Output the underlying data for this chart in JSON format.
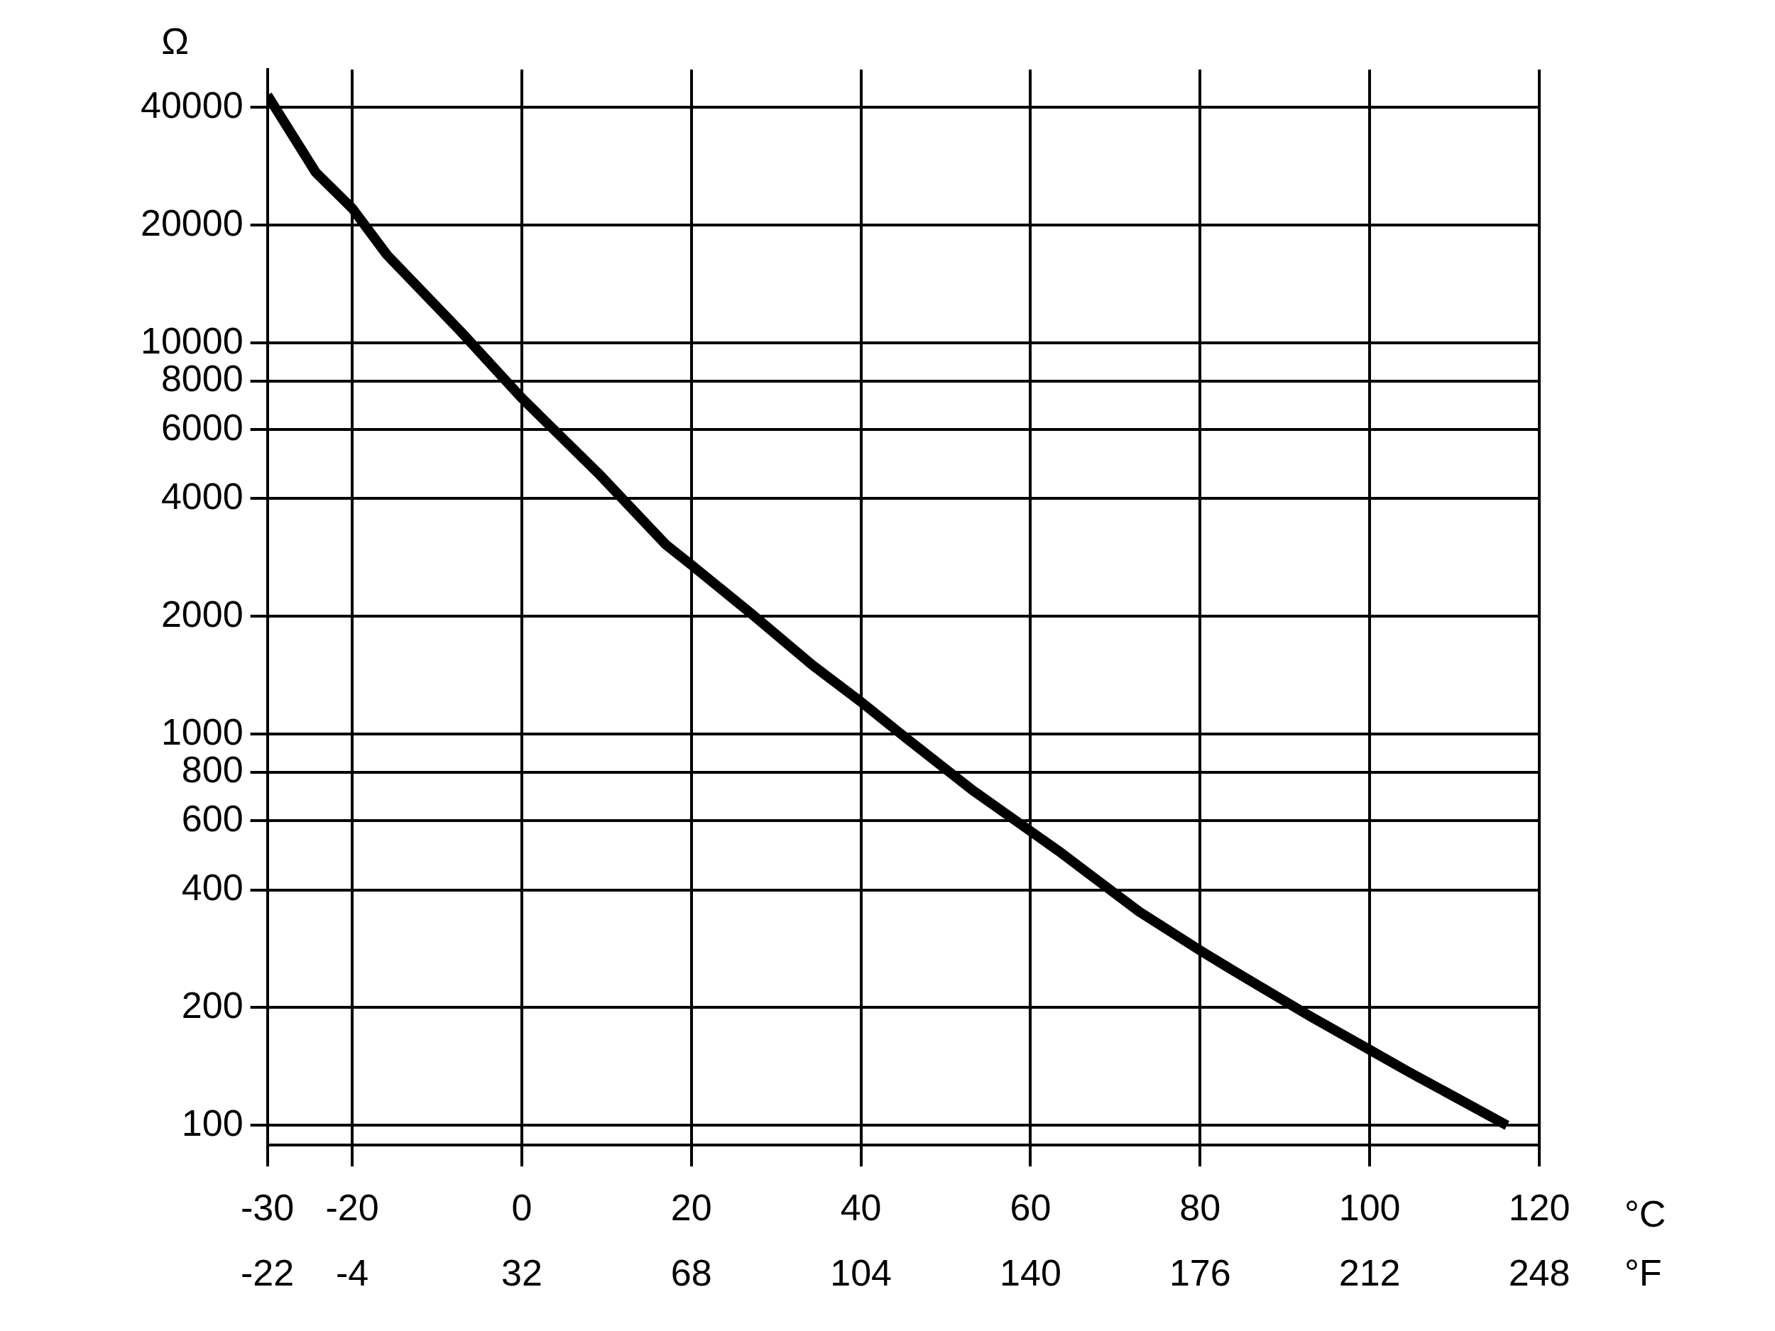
{
  "chart_data": {
    "type": "line",
    "ylabel": "Ω",
    "xlabel": "°C",
    "x2label": "°F",
    "log": "y",
    "grid": true,
    "marker": "none",
    "line_style": "solid",
    "xlim": [
      -30,
      120
    ],
    "xticks": [
      -30,
      -20,
      0,
      20,
      40,
      60,
      80,
      100,
      120
    ],
    "x2lim": [
      -22,
      248
    ],
    "x2ticks": [
      -22,
      -4,
      32,
      68,
      104,
      140,
      176,
      212,
      248
    ],
    "ylim": [
      89,
      50000
    ],
    "yticks": [
      100,
      200,
      400,
      600,
      800,
      1000,
      2000,
      4000,
      6000,
      8000,
      10000,
      20000,
      40000
    ],
    "series": [
      {
        "color": "#000000",
        "x": [
          -30,
          -24.3,
          -20,
          -15.9,
          -7.2,
          0,
          9,
          17,
          20,
          27.1,
          34.3,
          40,
          44.5,
          53.2,
          60,
          63.3,
          72.8,
          80,
          83.6,
          93,
          100,
          104.6,
          116.2
        ],
        "values": [
          43000,
          27300,
          22100,
          16800,
          10700,
          7230,
          4650,
          3050,
          2710,
          2030,
          1500,
          1210,
          1010,
          718,
          565,
          503,
          352,
          280,
          251,
          190,
          156,
          137,
          100
        ]
      }
    ]
  }
}
